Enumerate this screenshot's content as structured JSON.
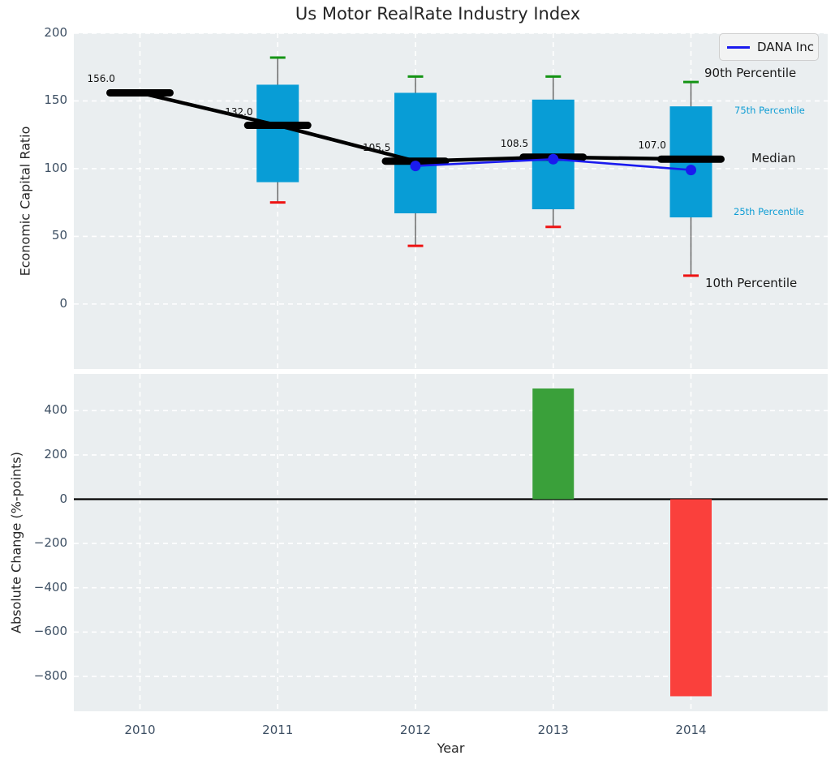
{
  "figure": {
    "legend": {
      "label": "DANA Inc"
    },
    "annotations": {
      "p90": "90th Percentile",
      "p75": "75th Percentile",
      "median": "Median",
      "p25": "25th Percentile",
      "p10": "10th Percentile"
    }
  },
  "colors": {
    "axes_background": "#eaeef0",
    "grid": "#ffffff",
    "box_fill": "#089dd6",
    "median_line": "#000000",
    "whisker": "#555555",
    "cap_high": "#149414",
    "cap_low": "#ee1212",
    "dana_line": "#1a1aef",
    "bar_positive": "#3aa03a",
    "bar_negative": "#fa403c",
    "tick_label": "#3d4f63",
    "zero_line": "#000000"
  },
  "chart_data": [
    {
      "type": "box",
      "title": "Us Motor RealRate Industry Index",
      "ylabel": "Economic Capital Ratio",
      "categories": [
        "2010",
        "2011",
        "2012",
        "2013",
        "2014"
      ],
      "ylim": [
        -48,
        200
      ],
      "grid": true,
      "legend_entries": [
        "DANA Inc"
      ],
      "legend_position": "upper right",
      "yticks": {
        "values": [
          200,
          150,
          100,
          50,
          0
        ],
        "labels": [
          "200",
          "150",
          "100",
          "50",
          "0"
        ]
      },
      "series": {
        "median": [
          156.0,
          132.0,
          105.5,
          108.5,
          107.0
        ],
        "median_labels": [
          "156.0",
          "132.0",
          "105.5",
          "108.5",
          "107.0"
        ],
        "q1": [
          null,
          90,
          67,
          70,
          64
        ],
        "q3": [
          null,
          162,
          156,
          151,
          146
        ],
        "p10": [
          null,
          75,
          43,
          57,
          21
        ],
        "p90": [
          null,
          182,
          168,
          168,
          164
        ],
        "dana": [
          null,
          null,
          102,
          107,
          99
        ]
      }
    },
    {
      "type": "bar",
      "ylabel": "Absolute Change (%-points)",
      "xlabel": "Year",
      "categories": [
        "2010",
        "2011",
        "2012",
        "2013",
        "2014"
      ],
      "values": [
        null,
        null,
        null,
        500,
        -890
      ],
      "ylim": [
        -954,
        566
      ],
      "grid": true,
      "yticks": {
        "values": [
          400,
          200,
          0,
          -200,
          -400,
          -600,
          -800
        ],
        "labels": [
          "400",
          "200",
          "0",
          "−200",
          "−400",
          "−600",
          "−800"
        ]
      }
    }
  ]
}
